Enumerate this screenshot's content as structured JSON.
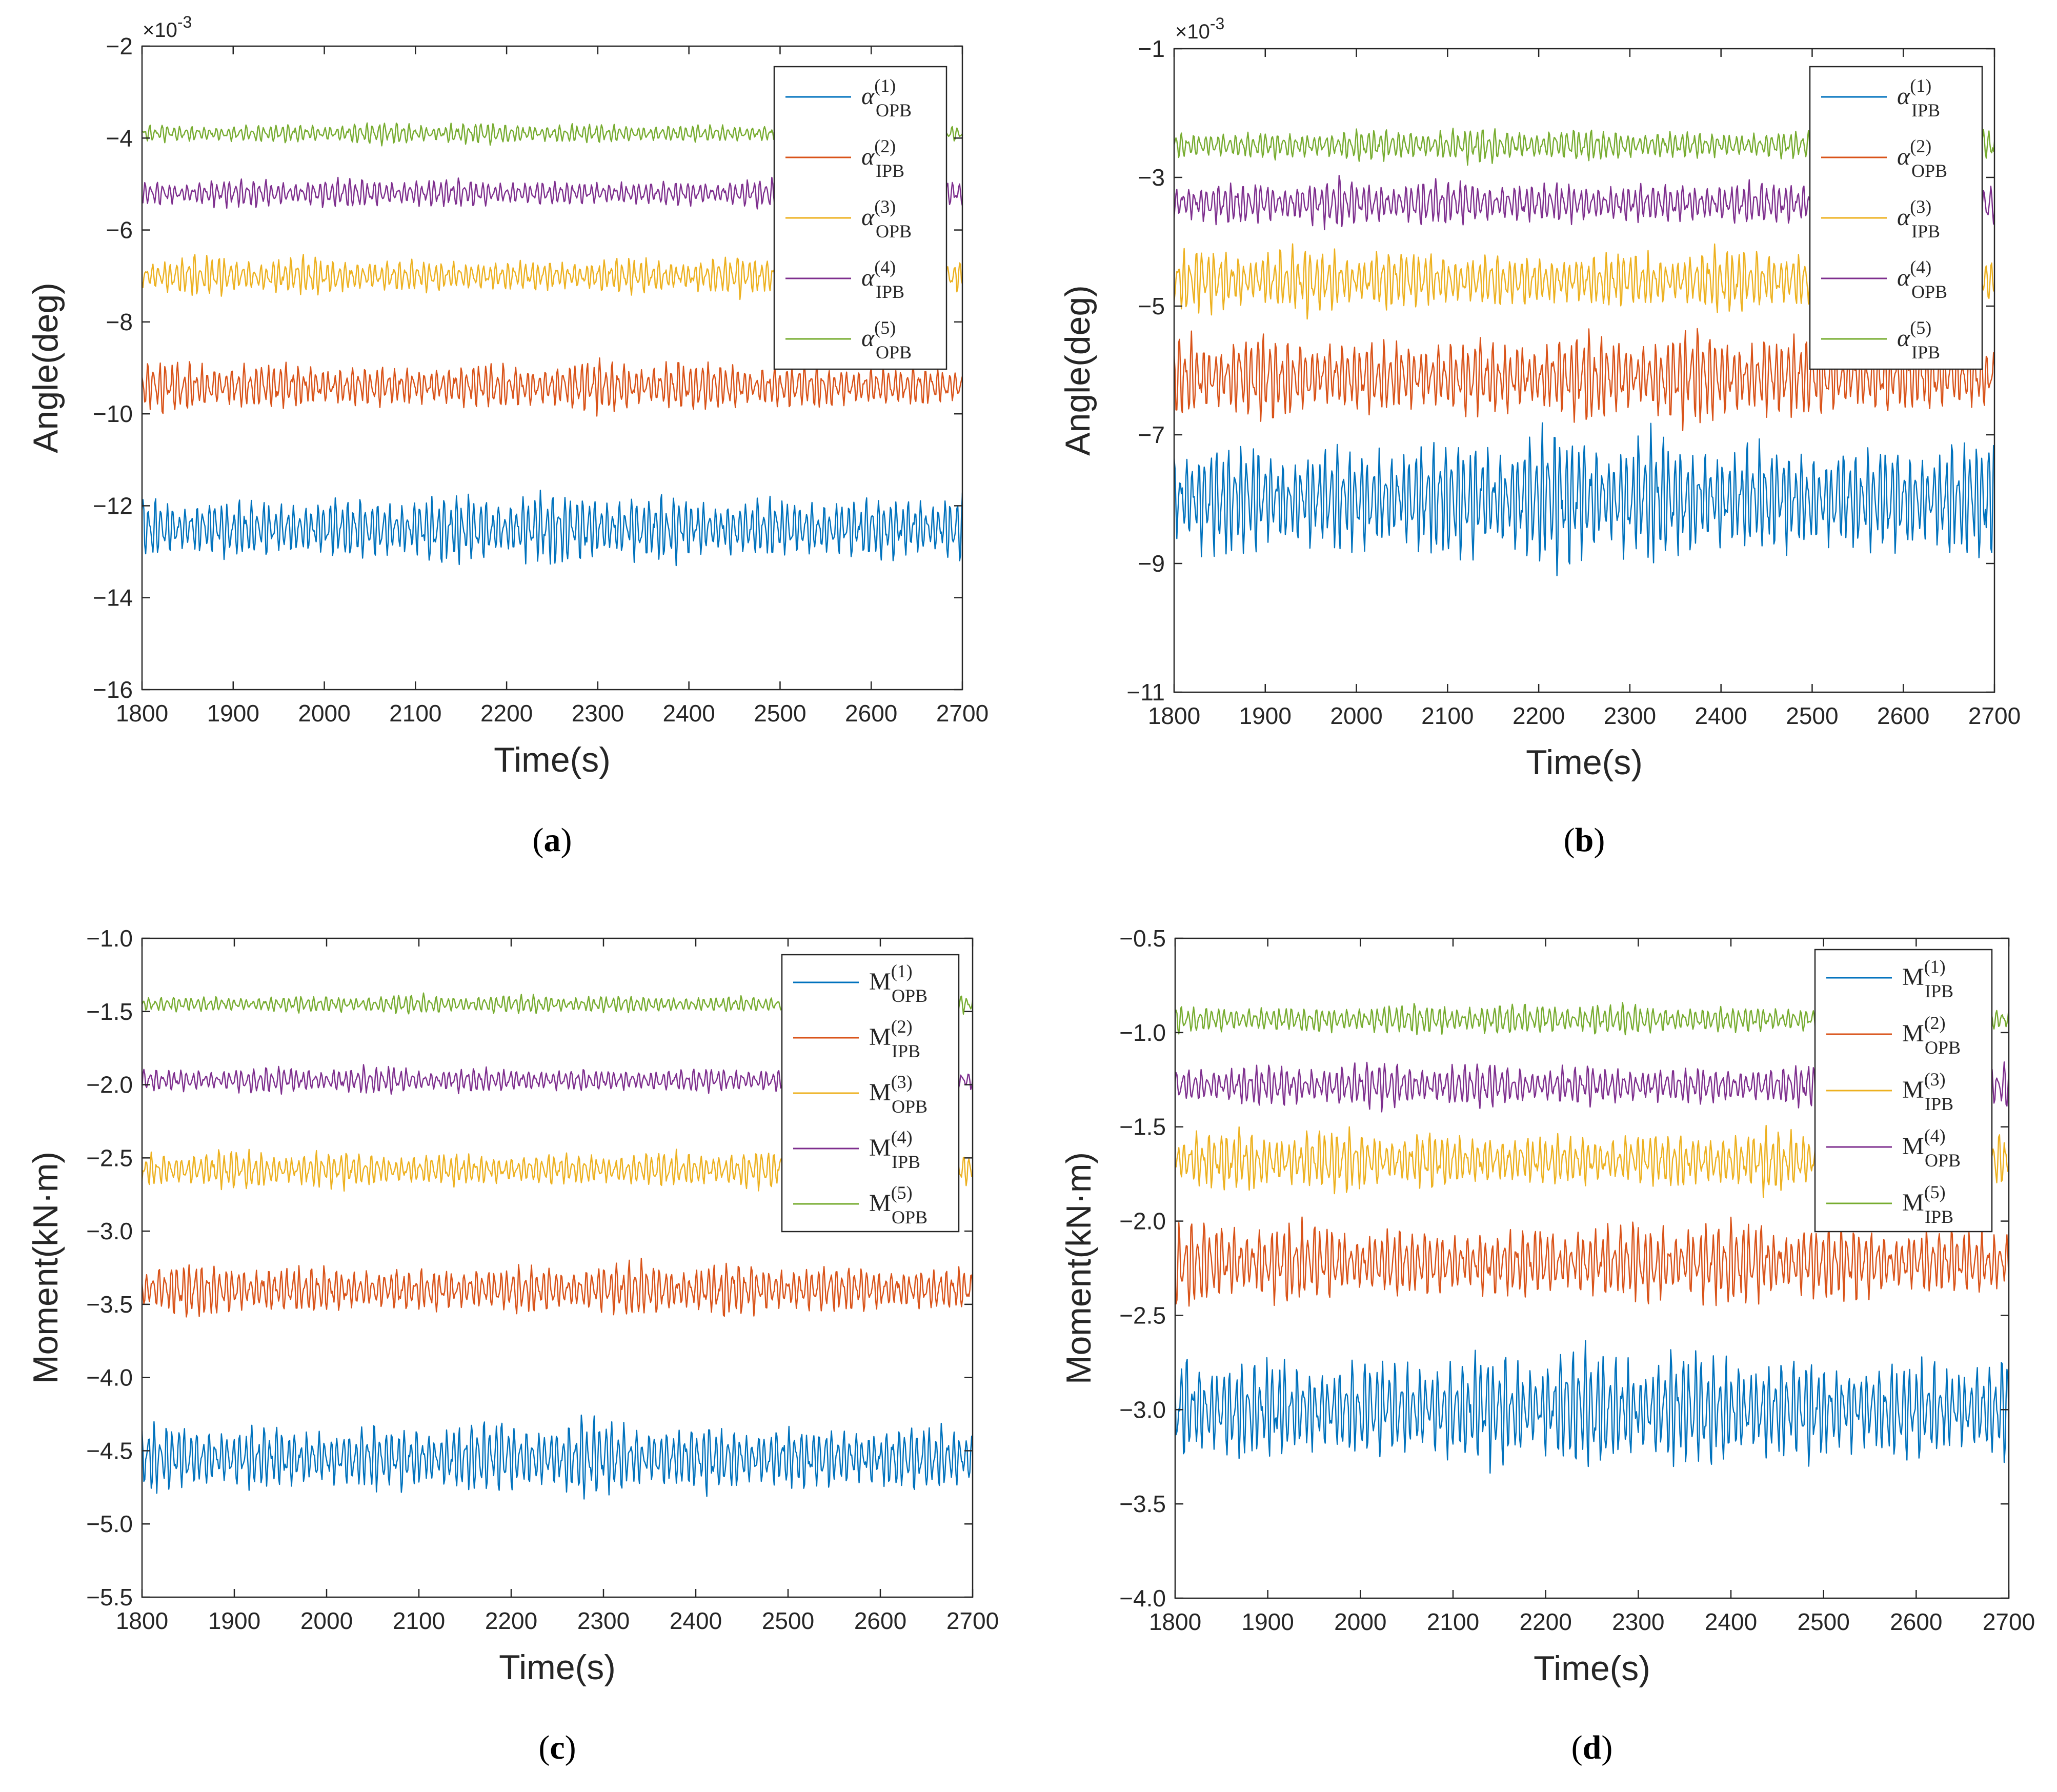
{
  "colors": {
    "s1": "#0072BD",
    "s2": "#D95319",
    "s3": "#EDB120",
    "s4": "#7E2F8E",
    "s5": "#77AC30",
    "axis": "#262626",
    "legend_bg": "#ffffff"
  },
  "chart_data": [
    {
      "id": "a",
      "type": "line",
      "panel_label": "a",
      "xlabel": "Time(s)",
      "ylabel": "Angle(deg)",
      "exponent_label": "×10",
      "exponent_power": "-3",
      "xlim": [
        1800,
        2700
      ],
      "ylim": [
        -16,
        -2
      ],
      "xticks": [
        "1800",
        "1900",
        "2000",
        "2100",
        "2200",
        "2300",
        "2400",
        "2500",
        "2600",
        "2700"
      ],
      "yticks": [
        "-16",
        "-14",
        "-12",
        "-10",
        "-8",
        "-6",
        "-4",
        "-2"
      ],
      "legend_position": "top-right",
      "grid": false,
      "series": [
        {
          "name": "α(1) OPB",
          "symbol": "α",
          "sup": "(1)",
          "sub": "OPB",
          "mean": -12.5,
          "amplitude": 0.85,
          "seed": 1
        },
        {
          "name": "α(2) IPB",
          "symbol": "α",
          "sup": "(2)",
          "sub": "IPB",
          "mean": -9.4,
          "amplitude": 0.6,
          "seed": 2
        },
        {
          "name": "α(3) OPB",
          "symbol": "α",
          "sup": "(3)",
          "sub": "OPB",
          "mean": -7.0,
          "amplitude": 0.45,
          "seed": 3
        },
        {
          "name": "α(4) IPB",
          "symbol": "α",
          "sup": "(4)",
          "sub": "IPB",
          "mean": -5.2,
          "amplitude": 0.35,
          "seed": 4
        },
        {
          "name": "α(5) OPB",
          "symbol": "α",
          "sup": "(5)",
          "sub": "OPB",
          "mean": -3.9,
          "amplitude": 0.25,
          "seed": 5
        }
      ]
    },
    {
      "id": "b",
      "type": "line",
      "panel_label": "b",
      "xlabel": "Time(s)",
      "ylabel": "Angle(deg)",
      "exponent_label": "×10",
      "exponent_power": "-3",
      "xlim": [
        1800,
        2700
      ],
      "ylim": [
        -11,
        -1
      ],
      "xticks": [
        "1800",
        "1900",
        "2000",
        "2100",
        "2200",
        "2300",
        "2400",
        "2500",
        "2600",
        "2700"
      ],
      "yticks": [
        "-11",
        "-9",
        "-7",
        "-5",
        "-3",
        "-1"
      ],
      "legend_position": "top-right",
      "grid": false,
      "series": [
        {
          "name": "α(1) IPB",
          "symbol": "α",
          "sup": "(1)",
          "sub": "IPB",
          "mean": -8.0,
          "amplitude": 1.1,
          "seed": 6
        },
        {
          "name": "α(2) OPB",
          "symbol": "α",
          "sup": "(2)",
          "sub": "OPB",
          "mean": -6.1,
          "amplitude": 0.75,
          "seed": 7
        },
        {
          "name": "α(3) IPB",
          "symbol": "α",
          "sup": "(3)",
          "sub": "IPB",
          "mean": -4.6,
          "amplitude": 0.55,
          "seed": 8
        },
        {
          "name": "α(4) OPB",
          "symbol": "α",
          "sup": "(4)",
          "sub": "OPB",
          "mean": -3.4,
          "amplitude": 0.4,
          "seed": 9
        },
        {
          "name": "α(5) IPB",
          "symbol": "α",
          "sup": "(5)",
          "sub": "IPB",
          "mean": -2.5,
          "amplitude": 0.28,
          "seed": 10
        }
      ]
    },
    {
      "id": "c",
      "type": "line",
      "panel_label": "c",
      "xlabel": "Time(s)",
      "ylabel": "Moment(kN·m)",
      "xlim": [
        1800,
        2700
      ],
      "ylim": [
        -5.5,
        -1.0
      ],
      "xticks": [
        "1800",
        "1900",
        "2000",
        "2100",
        "2200",
        "2300",
        "2400",
        "2500",
        "2600",
        "2700"
      ],
      "yticks": [
        "-5.5",
        "-5.0",
        "-4.5",
        "-4.0",
        "-3.5",
        "-3.0",
        "-2.5",
        "-2.0",
        "-1.5",
        "-1.0"
      ],
      "legend_position": "top-right",
      "grid": false,
      "series": [
        {
          "name": "M(1) OPB",
          "symbol": "M",
          "sup": "(1)",
          "sub": "OPB",
          "mean": -4.55,
          "amplitude": 0.28,
          "seed": 11
        },
        {
          "name": "M(2) IPB",
          "symbol": "M",
          "sup": "(2)",
          "sub": "IPB",
          "mean": -3.4,
          "amplitude": 0.2,
          "seed": 12
        },
        {
          "name": "M(3) OPB",
          "symbol": "M",
          "sup": "(3)",
          "sub": "OPB",
          "mean": -2.58,
          "amplitude": 0.14,
          "seed": 13
        },
        {
          "name": "M(4) IPB",
          "symbol": "M",
          "sup": "(4)",
          "sub": "IPB",
          "mean": -1.97,
          "amplitude": 0.1,
          "seed": 14
        },
        {
          "name": "M(5) OPB",
          "symbol": "M",
          "sup": "(5)",
          "sub": "OPB",
          "mean": -1.45,
          "amplitude": 0.07,
          "seed": 15
        }
      ]
    },
    {
      "id": "d",
      "type": "line",
      "panel_label": "d",
      "xlabel": "Time(s)",
      "ylabel": "Moment(kN·m)",
      "xlim": [
        1800,
        2700
      ],
      "ylim": [
        -4.0,
        -0.5
      ],
      "xticks": [
        "1800",
        "1900",
        "2000",
        "2100",
        "2200",
        "2300",
        "2400",
        "2500",
        "2600",
        "2700"
      ],
      "yticks": [
        "-4.0",
        "-3.5",
        "-3.0",
        "-2.5",
        "-2.0",
        "-1.5",
        "-1.0",
        "-0.5"
      ],
      "legend_position": "top-right",
      "grid": false,
      "series": [
        {
          "name": "M(1) IPB",
          "symbol": "M",
          "sup": "(1)",
          "sub": "IPB",
          "mean": -3.0,
          "amplitude": 0.35,
          "seed": 16
        },
        {
          "name": "M(2) OPB",
          "symbol": "M",
          "sup": "(2)",
          "sub": "OPB",
          "mean": -2.22,
          "amplitude": 0.24,
          "seed": 17
        },
        {
          "name": "M(3) IPB",
          "symbol": "M",
          "sup": "(3)",
          "sub": "IPB",
          "mean": -1.68,
          "amplitude": 0.18,
          "seed": 18
        },
        {
          "name": "M(4) OPB",
          "symbol": "M",
          "sup": "(4)",
          "sub": "OPB",
          "mean": -1.28,
          "amplitude": 0.13,
          "seed": 19
        },
        {
          "name": "M(5) IPB",
          "symbol": "M",
          "sup": "(5)",
          "sub": "IPB",
          "mean": -0.93,
          "amplitude": 0.09,
          "seed": 20
        }
      ]
    }
  ]
}
